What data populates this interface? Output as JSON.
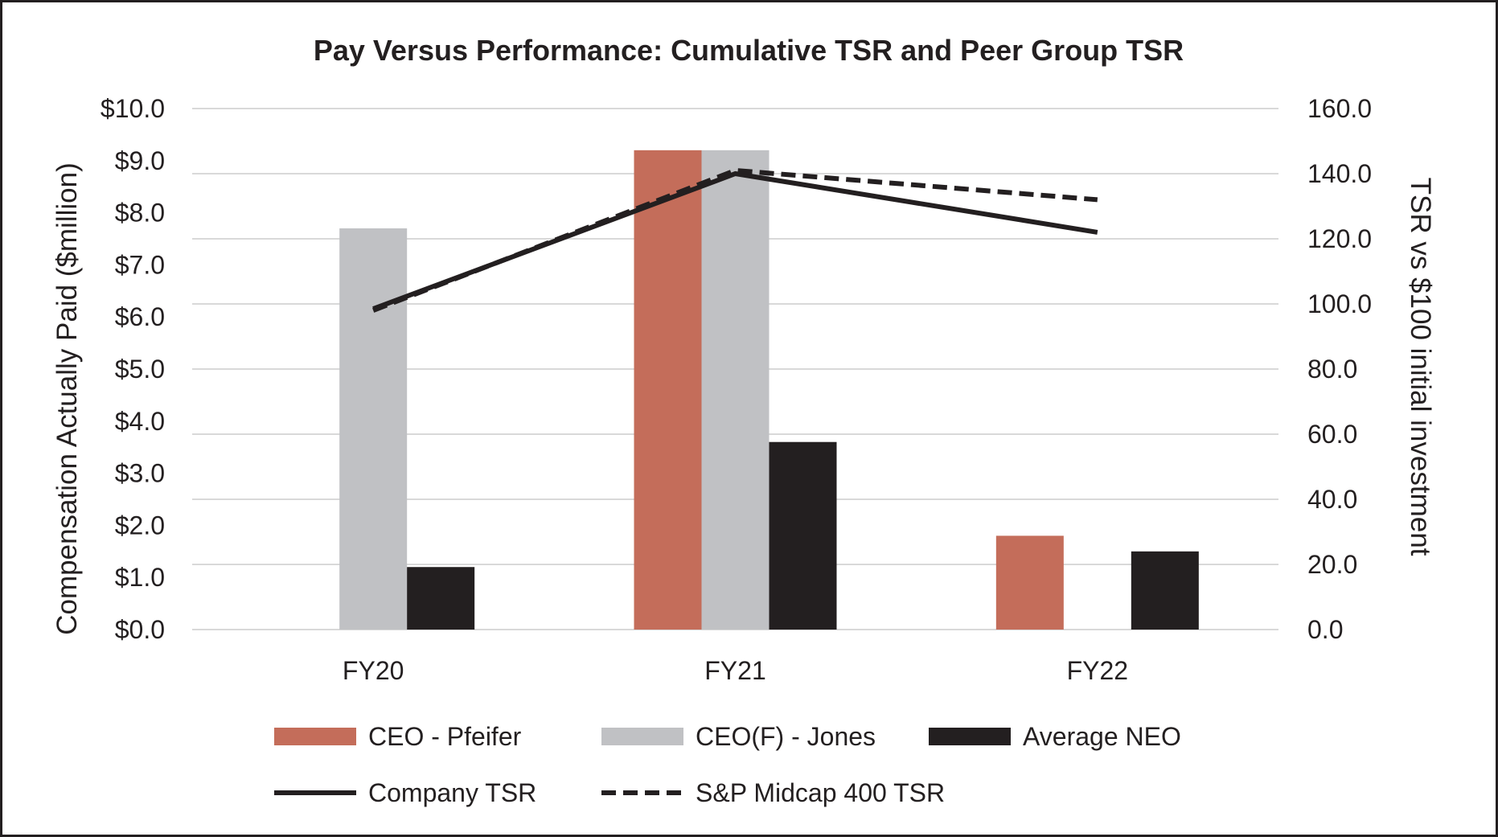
{
  "chart_data": {
    "type": "bar",
    "title": "Pay Versus Performance: Cumulative TSR and Peer Group TSR",
    "categories": [
      "FY20",
      "FY21",
      "FY22"
    ],
    "y_left": {
      "label": "Compensation Actually Paid ($million)",
      "range": [
        0,
        10
      ],
      "ticks": [
        "$0.0",
        "$1.0",
        "$2.0",
        "$3.0",
        "$4.0",
        "$5.0",
        "$6.0",
        "$7.0",
        "$8.0",
        "$9.0",
        "$10.0"
      ]
    },
    "y_right": {
      "label": "TSR vs $100 initial investment",
      "range": [
        0,
        160
      ],
      "ticks": [
        "0.0",
        "20.0",
        "40.0",
        "60.0",
        "80.0",
        "100.0",
        "120.0",
        "140.0",
        "160.0"
      ]
    },
    "bar_series": [
      {
        "name": "CEO - Pfeifer",
        "color": "#c46d5a",
        "values": [
          null,
          9.2,
          1.8
        ]
      },
      {
        "name": "CEO(F) - Jones",
        "color": "#c0c1c4",
        "values": [
          7.7,
          9.2,
          null
        ]
      },
      {
        "name": "Average NEO",
        "color": "#231f20",
        "values": [
          1.2,
          3.6,
          1.5
        ]
      }
    ],
    "line_series": [
      {
        "name": "Company TSR",
        "color": "#231f20",
        "style": "solid",
        "values": [
          98.5,
          140,
          122
        ]
      },
      {
        "name": "S&P Midcap 400 TSR",
        "color": "#231f20",
        "style": "dashed",
        "values": [
          98,
          141,
          132
        ]
      }
    ],
    "grid": true,
    "legend_position": "bottom"
  }
}
